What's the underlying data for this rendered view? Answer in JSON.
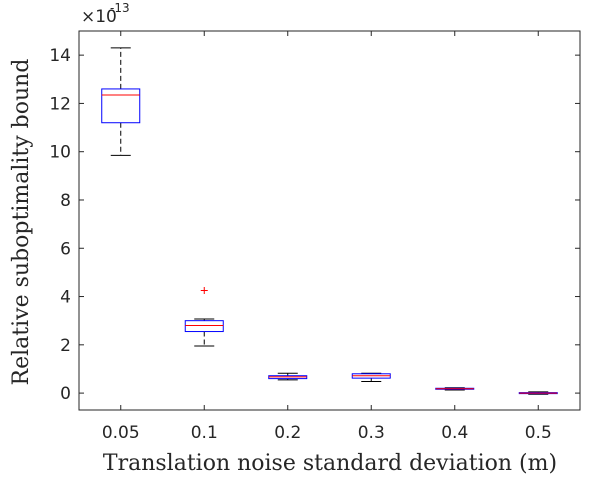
{
  "chart_data": {
    "type": "box",
    "xlabel": "Translation noise standard deviation (m)",
    "ylabel": "Relative suboptimality bound",
    "y_exponent_base": "×10",
    "y_exponent_power": "-13",
    "ylim": [
      -0.7,
      15
    ],
    "y_ticks": [
      0,
      2,
      4,
      6,
      8,
      10,
      12,
      14
    ],
    "y_tick_labels": [
      "0",
      "2",
      "4",
      "6",
      "8",
      "10",
      "12",
      "14"
    ],
    "categories": [
      "0.05",
      "0.1",
      "0.2",
      "0.3",
      "0.4",
      "0.5"
    ],
    "boxes": [
      {
        "category": "0.05",
        "whisker_low": 9.85,
        "q1": 11.2,
        "median": 12.35,
        "q3": 12.6,
        "whisker_high": 14.3,
        "outliers": []
      },
      {
        "category": "0.1",
        "whisker_low": 1.95,
        "q1": 2.55,
        "median": 2.8,
        "q3": 3.0,
        "whisker_high": 3.07,
        "outliers": [
          4.25
        ]
      },
      {
        "category": "0.2",
        "whisker_low": 0.55,
        "q1": 0.6,
        "median": 0.67,
        "q3": 0.72,
        "whisker_high": 0.82,
        "outliers": []
      },
      {
        "category": "0.3",
        "whisker_low": 0.48,
        "q1": 0.62,
        "median": 0.72,
        "q3": 0.8,
        "whisker_high": 0.82,
        "outliers": []
      },
      {
        "category": "0.4",
        "whisker_low": 0.13,
        "q1": 0.16,
        "median": 0.18,
        "q3": 0.2,
        "whisker_high": 0.22,
        "outliers": []
      },
      {
        "category": "0.5",
        "whisker_low": -0.05,
        "q1": -0.02,
        "median": 0.0,
        "q3": 0.02,
        "whisker_high": 0.05,
        "outliers": []
      }
    ],
    "colors": {
      "box": "#0000ff",
      "median": "#ff0000",
      "whisker": "#000000",
      "outlier": "#ff0000",
      "axis": "#262626"
    }
  }
}
